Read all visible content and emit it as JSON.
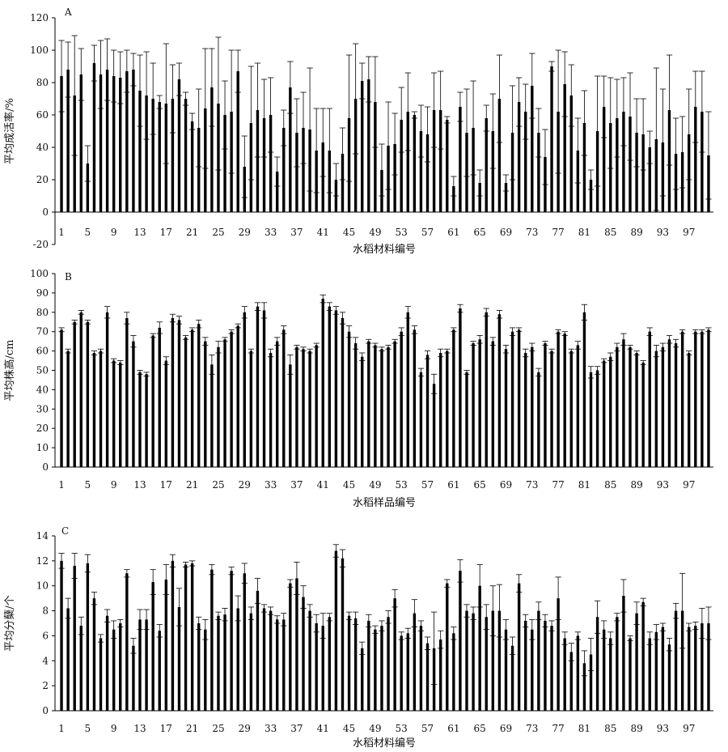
{
  "chart_data": [
    {
      "type": "bar",
      "panel_label": "A",
      "xlabel": "水稻材料编号",
      "ylabel": "平均成活率/%",
      "ylim": [
        -20,
        120
      ],
      "yticks": [
        -20,
        0,
        20,
        40,
        60,
        80,
        100,
        120
      ],
      "xticks": [
        1,
        5,
        9,
        13,
        17,
        21,
        25,
        29,
        33,
        37,
        41,
        45,
        49,
        53,
        57,
        61,
        65,
        69,
        73,
        77,
        81,
        85,
        89,
        93,
        97
      ],
      "bar_color": "#000000",
      "categories": [
        1,
        2,
        3,
        4,
        5,
        6,
        7,
        8,
        9,
        10,
        11,
        12,
        13,
        14,
        15,
        16,
        17,
        18,
        19,
        20,
        21,
        22,
        23,
        24,
        25,
        26,
        27,
        28,
        29,
        30,
        31,
        32,
        33,
        34,
        35,
        36,
        37,
        38,
        39,
        40,
        41,
        42,
        43,
        44,
        45,
        46,
        47,
        48,
        49,
        50,
        51,
        52,
        53,
        54,
        55,
        56,
        57,
        58,
        59,
        60,
        61,
        62,
        63,
        64,
        65,
        66,
        67,
        68,
        69,
        70,
        71,
        72,
        73,
        74,
        75,
        76,
        77,
        78,
        79,
        80,
        81,
        82,
        83,
        84,
        85,
        86,
        87,
        88,
        89,
        90,
        91,
        92,
        93,
        94,
        95,
        96,
        97,
        98,
        99,
        100
      ],
      "values": [
        84,
        88,
        72,
        85,
        30,
        92,
        85,
        88,
        84,
        83,
        87,
        88,
        75,
        72,
        70,
        68,
        67,
        70,
        82,
        70,
        56,
        52,
        64,
        77,
        67,
        60,
        62,
        87,
        28,
        55,
        63,
        58,
        60,
        25,
        52,
        77,
        49,
        52,
        51,
        38,
        43,
        38,
        20,
        36,
        58,
        70,
        81,
        82,
        68,
        26,
        41,
        42,
        57,
        62,
        60,
        50,
        48,
        63,
        63,
        57,
        16,
        65,
        49,
        52,
        18,
        58,
        50,
        70,
        18,
        49,
        68,
        62,
        78,
        49,
        34,
        90,
        62,
        79,
        72,
        38,
        55,
        20,
        50,
        65,
        55,
        58,
        62,
        59,
        49,
        48,
        40,
        45,
        43,
        63,
        36,
        37,
        48,
        65,
        62,
        35
      ],
      "errors": [
        22,
        17,
        37,
        16,
        11,
        11,
        21,
        19,
        16,
        16,
        13,
        10,
        22,
        27,
        22,
        4,
        37,
        21,
        10,
        4,
        5,
        24,
        37,
        24,
        41,
        21,
        38,
        13,
        19,
        35,
        29,
        24,
        23,
        9,
        11,
        16,
        21,
        22,
        38,
        26,
        21,
        26,
        10,
        16,
        39,
        34,
        11,
        14,
        28,
        16,
        27,
        19,
        20,
        24,
        2,
        16,
        17,
        23,
        24,
        2,
        6,
        9,
        27,
        29,
        8,
        8,
        23,
        27,
        5,
        29,
        15,
        17,
        20,
        15,
        17,
        3,
        38,
        20,
        19,
        20,
        20,
        6,
        34,
        19,
        28,
        24,
        21,
        27,
        21,
        22,
        10,
        44,
        33,
        34,
        22,
        22,
        28,
        22,
        25,
        27
      ]
    },
    {
      "type": "bar",
      "panel_label": "B",
      "xlabel": "水稻样品编号",
      "ylabel": "平均株高/cm",
      "ylim": [
        0,
        100
      ],
      "yticks": [
        0,
        10,
        20,
        30,
        40,
        50,
        60,
        70,
        80,
        90,
        100
      ],
      "xticks": [
        1,
        5,
        9,
        13,
        17,
        21,
        25,
        29,
        33,
        37,
        41,
        45,
        49,
        53,
        57,
        61,
        65,
        69,
        73,
        77,
        81,
        85,
        89,
        93,
        97
      ],
      "bar_color": "#000000",
      "categories": [
        1,
        2,
        3,
        4,
        5,
        6,
        7,
        8,
        9,
        10,
        11,
        12,
        13,
        14,
        15,
        16,
        17,
        18,
        19,
        20,
        21,
        22,
        23,
        24,
        25,
        26,
        27,
        28,
        29,
        30,
        31,
        32,
        33,
        34,
        35,
        36,
        37,
        38,
        39,
        40,
        41,
        42,
        43,
        44,
        45,
        46,
        47,
        48,
        49,
        50,
        51,
        52,
        53,
        54,
        55,
        56,
        57,
        58,
        59,
        60,
        61,
        62,
        63,
        64,
        65,
        66,
        67,
        68,
        69,
        70,
        71,
        72,
        73,
        74,
        75,
        76,
        77,
        78,
        79,
        80,
        81,
        82,
        83,
        84,
        85,
        86,
        87,
        88,
        89,
        90,
        91,
        92,
        93,
        94,
        95,
        96,
        97,
        98,
        99,
        100
      ],
      "values": [
        71,
        60,
        75,
        80,
        75,
        59,
        60,
        80,
        55,
        54,
        77,
        65,
        49,
        48,
        68,
        72,
        55,
        77,
        76,
        67,
        71,
        74,
        65,
        53,
        62,
        66,
        70,
        73,
        80,
        60,
        83,
        81,
        59,
        65,
        71,
        53,
        62,
        61,
        60,
        63,
        87,
        83,
        81,
        77,
        70,
        64,
        57,
        65,
        63,
        61,
        62,
        65,
        70,
        80,
        71,
        49,
        58,
        43,
        59,
        60,
        71,
        82,
        49,
        64,
        66,
        80,
        65,
        79,
        61,
        70,
        71,
        59,
        62,
        49,
        64,
        60,
        70,
        69,
        60,
        63,
        80,
        49,
        50,
        55,
        57,
        62,
        66,
        62,
        59,
        54,
        70,
        60,
        62,
        66,
        64,
        70,
        59,
        70,
        70,
        71
      ],
      "errors": [
        1,
        1,
        1,
        1,
        1,
        1,
        1,
        3,
        1,
        1,
        3,
        3,
        1,
        1,
        1,
        3,
        2,
        2,
        2,
        1,
        1,
        2,
        2,
        5,
        3,
        1,
        1,
        1,
        3,
        1,
        2,
        4,
        2,
        2,
        2,
        5,
        1,
        1,
        1,
        1,
        2,
        2,
        2,
        3,
        3,
        3,
        2,
        1,
        1,
        1,
        1,
        1,
        2,
        3,
        2,
        2,
        2,
        5,
        2,
        1,
        1,
        2,
        1,
        1,
        2,
        2,
        2,
        2,
        2,
        2,
        1,
        2,
        2,
        2,
        1,
        1,
        1,
        1,
        1,
        2,
        4,
        3,
        2,
        1,
        2,
        2,
        3,
        1,
        1,
        1,
        2,
        3,
        2,
        2,
        2,
        1,
        1,
        1,
        1,
        1
      ]
    },
    {
      "type": "bar",
      "panel_label": "C",
      "xlabel": "水稻材料编号",
      "ylabel": "平均分蘖/个",
      "ylim": [
        0,
        14
      ],
      "yticks": [
        0,
        2,
        4,
        6,
        8,
        10,
        12,
        14
      ],
      "xticks": [
        1,
        5,
        9,
        13,
        17,
        21,
        25,
        29,
        33,
        37,
        41,
        45,
        49,
        53,
        57,
        61,
        65,
        69,
        73,
        77,
        81,
        85,
        89,
        93,
        97
      ],
      "bar_color": "#000000",
      "categories": [
        1,
        2,
        3,
        4,
        5,
        6,
        7,
        8,
        9,
        10,
        11,
        12,
        13,
        14,
        15,
        16,
        17,
        18,
        19,
        20,
        21,
        22,
        23,
        24,
        25,
        26,
        27,
        28,
        29,
        30,
        31,
        32,
        33,
        34,
        35,
        36,
        37,
        38,
        39,
        40,
        41,
        42,
        43,
        44,
        45,
        46,
        47,
        48,
        49,
        50,
        51,
        52,
        53,
        54,
        55,
        56,
        57,
        58,
        59,
        60,
        61,
        62,
        63,
        64,
        65,
        66,
        67,
        68,
        69,
        70,
        71,
        72,
        73,
        74,
        75,
        76,
        77,
        78,
        79,
        80,
        81,
        82,
        83,
        84,
        85,
        86,
        87,
        88,
        89,
        90,
        91,
        92,
        93,
        94,
        95,
        96,
        97,
        98,
        99,
        100
      ],
      "values": [
        12.0,
        8.2,
        11.6,
        6.8,
        11.8,
        9.0,
        5.8,
        7.6,
        6.5,
        7.0,
        11.0,
        5.2,
        7.3,
        7.3,
        10.3,
        6.4,
        10.5,
        12.0,
        8.3,
        11.7,
        11.8,
        7.0,
        6.5,
        11.3,
        7.6,
        7.7,
        11.2,
        8.2,
        11.0,
        7.8,
        9.6,
        8.2,
        8.0,
        7.3,
        7.3,
        10.2,
        10.6,
        9.1,
        8.0,
        7.0,
        6.8,
        7.5,
        12.8,
        12.2,
        7.6,
        7.4,
        5.0,
        7.2,
        6.5,
        6.8,
        7.5,
        9.0,
        6.0,
        6.2,
        7.8,
        6.8,
        5.4,
        5.0,
        5.7,
        10.2,
        6.2,
        11.2,
        8.0,
        7.8,
        10.0,
        7.5,
        8.0,
        8.0,
        6.5,
        5.2,
        10.2,
        7.2,
        6.5,
        8.0,
        7.2,
        6.8,
        9.0,
        5.8,
        4.7,
        6.0,
        3.8,
        4.5,
        7.5,
        6.5,
        5.8,
        7.5,
        9.2,
        5.8,
        7.8,
        8.7,
        5.8,
        6.3,
        6.7,
        5.3,
        8.0,
        8.0,
        6.7,
        6.8,
        7.0,
        7.0
      ],
      "errors": [
        0.6,
        0.8,
        1.0,
        0.7,
        0.7,
        0.5,
        0.3,
        0.5,
        0.7,
        0.3,
        0.3,
        0.6,
        0.8,
        0.8,
        1.0,
        0.5,
        1.2,
        0.5,
        1.5,
        0.2,
        0.2,
        0.5,
        0.8,
        0.4,
        0.3,
        0.5,
        0.3,
        1.0,
        0.8,
        0.5,
        1.0,
        0.3,
        0.3,
        0.3,
        0.5,
        0.3,
        1.3,
        0.9,
        0.5,
        0.7,
        1.0,
        0.3,
        0.5,
        0.7,
        0.3,
        0.5,
        0.5,
        0.5,
        0.3,
        0.4,
        0.5,
        0.7,
        0.3,
        0.4,
        1.1,
        0.4,
        0.5,
        2.9,
        0.7,
        0.3,
        0.5,
        0.9,
        0.5,
        0.5,
        1.7,
        1.0,
        2.0,
        2.1,
        0.8,
        0.7,
        0.7,
        0.5,
        0.8,
        0.7,
        0.5,
        0.4,
        1.7,
        0.5,
        0.7,
        0.3,
        1.0,
        1.3,
        1.3,
        0.7,
        0.5,
        0.3,
        1.3,
        0.2,
        0.9,
        0.3,
        0.5,
        0.6,
        0.3,
        0.5,
        0.6,
        3.0,
        0.3,
        0.3,
        1.2,
        1.3
      ]
    }
  ]
}
